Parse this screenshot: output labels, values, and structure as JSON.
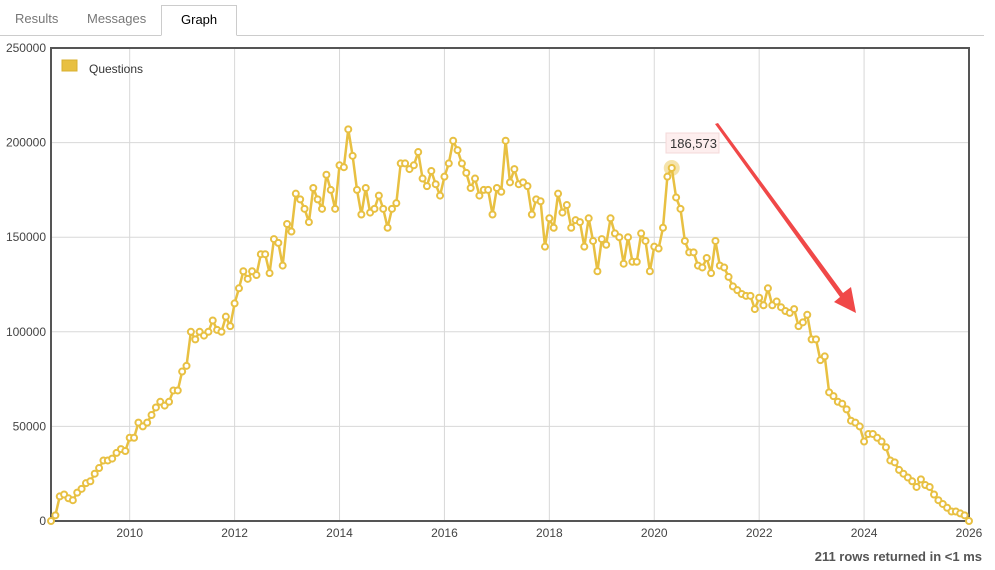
{
  "tabs": [
    {
      "label": "Results",
      "active": false
    },
    {
      "label": "Messages",
      "active": false
    },
    {
      "label": "Graph",
      "active": true
    }
  ],
  "footer": {
    "status": "211 rows returned in <1 ms"
  },
  "tooltip": {
    "label": "186,573",
    "x": "2020-05"
  },
  "annotation": {
    "type": "arrow",
    "color": "#f04848"
  },
  "chart_data": {
    "type": "line",
    "title": "",
    "xlabel": "",
    "ylabel": "",
    "xlim": [
      "2008-07",
      "2026-01"
    ],
    "ylim": [
      0,
      250000
    ],
    "xticks": [
      "2010",
      "2012",
      "2014",
      "2016",
      "2018",
      "2020",
      "2022",
      "2024",
      "2026"
    ],
    "yticks": [
      "0",
      "50000",
      "100000",
      "150000",
      "200000",
      "250000"
    ],
    "grid": true,
    "legend": "top-left",
    "series": [
      {
        "name": "Questions",
        "color": "#e8c042",
        "x_start": "2008-07",
        "frequency": "monthly",
        "values": [
          0,
          3000,
          13000,
          14000,
          12000,
          11000,
          15000,
          17000,
          20000,
          21000,
          25000,
          28000,
          32000,
          32000,
          33000,
          36000,
          38000,
          37000,
          44000,
          44000,
          52000,
          50000,
          52000,
          56000,
          60000,
          63000,
          61000,
          63000,
          69000,
          69000,
          79000,
          82000,
          100000,
          96000,
          100000,
          98000,
          100000,
          106000,
          101000,
          100000,
          108000,
          103000,
          115000,
          123000,
          132000,
          128000,
          132000,
          130000,
          141000,
          141000,
          131000,
          149000,
          147000,
          135000,
          157000,
          153000,
          173000,
          170000,
          165000,
          158000,
          176000,
          170000,
          165000,
          183000,
          175000,
          165000,
          188000,
          187000,
          207000,
          193000,
          175000,
          162000,
          176000,
          163000,
          165000,
          172000,
          165000,
          155000,
          165000,
          168000,
          189000,
          189000,
          186000,
          188000,
          195000,
          181000,
          177000,
          185000,
          178000,
          172000,
          182000,
          189000,
          201000,
          196000,
          189000,
          184000,
          176000,
          181000,
          172000,
          175000,
          175000,
          162000,
          176000,
          174000,
          201000,
          179000,
          186000,
          178000,
          179000,
          177000,
          162000,
          170000,
          169000,
          145000,
          160000,
          155000,
          173000,
          163000,
          167000,
          155000,
          159000,
          158000,
          145000,
          160000,
          148000,
          132000,
          149000,
          146000,
          160000,
          152000,
          150000,
          136000,
          150000,
          137000,
          137000,
          152000,
          148000,
          132000,
          145000,
          144000,
          155000,
          182000,
          186573,
          171000,
          165000,
          148000,
          142000,
          142000,
          135000,
          134000,
          139000,
          131000,
          148000,
          135000,
          134000,
          129000,
          124000,
          122000,
          120000,
          119000,
          119000,
          112000,
          118000,
          114000,
          123000,
          114000,
          116000,
          113000,
          111000,
          110000,
          112000,
          103000,
          105000,
          109000,
          96000,
          96000,
          85000,
          87000,
          68000,
          66000,
          63000,
          62000,
          59000,
          53000,
          52000,
          50000,
          42000,
          46000,
          46000,
          44000,
          42000,
          39000,
          32000,
          31000,
          27000,
          25000,
          23000,
          21000,
          18000,
          22000,
          19000,
          18000,
          14000,
          11000,
          9000,
          7000,
          5000,
          5000,
          4000,
          3000,
          0
        ]
      }
    ]
  }
}
